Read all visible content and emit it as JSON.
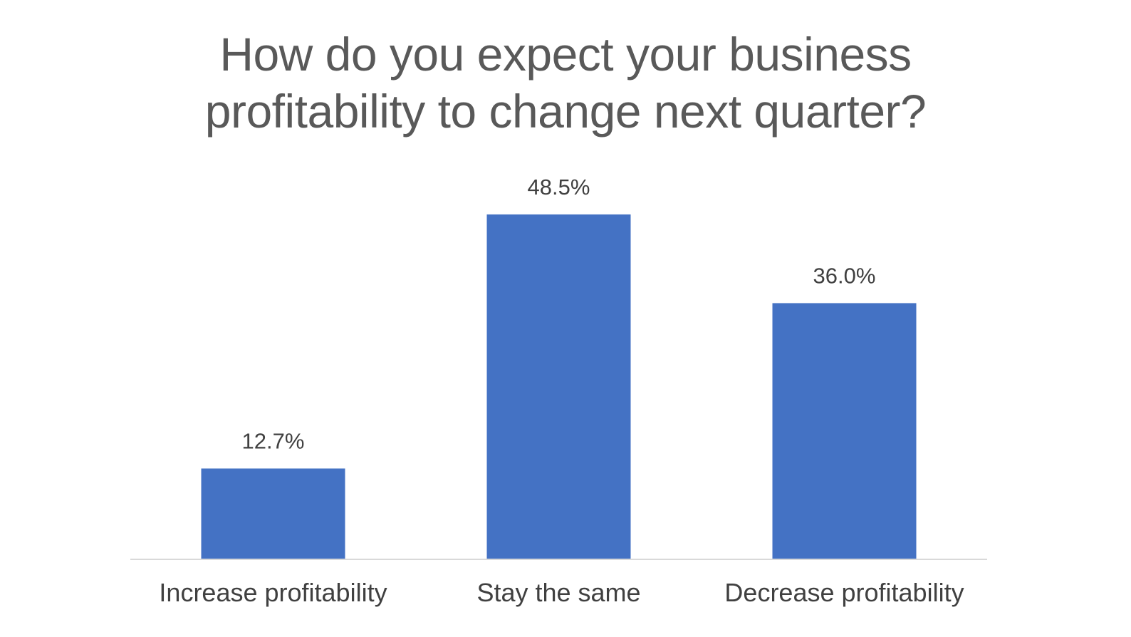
{
  "chart_data": {
    "type": "bar",
    "title_lines": [
      "How do you expect your business",
      "profitability to change next quarter?"
    ],
    "categories": [
      "Increase profitability",
      "Stay the same",
      "Decrease profitability"
    ],
    "values": [
      12.7,
      48.5,
      36.0
    ],
    "data_labels": [
      "12.7%",
      "48.5%",
      "36.0%"
    ],
    "ylim": [
      0,
      50
    ],
    "grid": false,
    "legend": "none",
    "bar_color": "#4472C4",
    "axis_color": "#D9D9D9"
  }
}
